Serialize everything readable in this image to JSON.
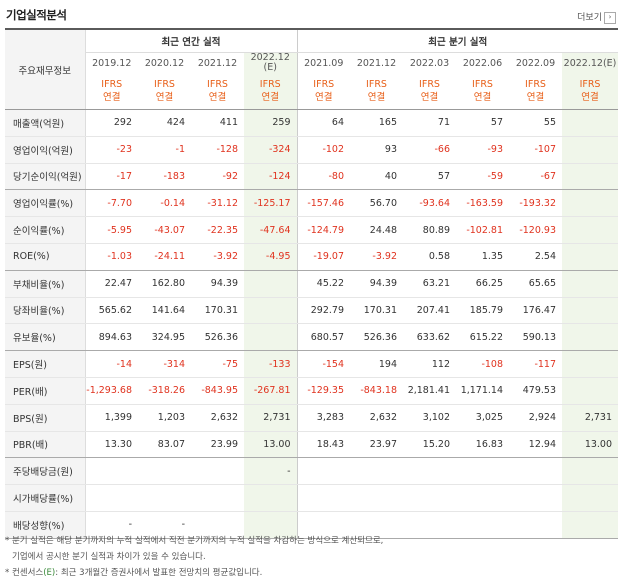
{
  "title": "기업실적분석",
  "more_label": "더보기",
  "more_arrow": "›",
  "row_header": "주요재무정보",
  "annual_group": "최근 연간 실적",
  "quarterly_group": "최근 분기 실적",
  "annual_periods": [
    "2019.12",
    "2020.12",
    "2021.12",
    "2022.12"
  ],
  "annual_est_mark": "(E)",
  "quarterly_periods": [
    "2021.09",
    "2021.12",
    "2022.03",
    "2022.06",
    "2022.09",
    "2022.12(E)"
  ],
  "ifrs_line1": "IFRS",
  "ifrs_line2": "연결",
  "rows": [
    {
      "label": "매출액(억원)",
      "values": [
        "292",
        "424",
        "411",
        "259",
        "64",
        "165",
        "71",
        "57",
        "55",
        ""
      ]
    },
    {
      "label": "영업이익(억원)",
      "values": [
        "-23",
        "-1",
        "-128",
        "-324",
        "-102",
        "93",
        "-66",
        "-93",
        "-107",
        ""
      ]
    },
    {
      "label": "당기순이익(억원)",
      "values": [
        "-17",
        "-183",
        "-92",
        "-124",
        "-80",
        "40",
        "57",
        "-59",
        "-67",
        ""
      ]
    },
    {
      "label": "영업이익률(%)",
      "values": [
        "-7.70",
        "-0.14",
        "-31.12",
        "-125.17",
        "-157.46",
        "56.70",
        "-93.64",
        "-163.59",
        "-193.32",
        ""
      ]
    },
    {
      "label": "순이익률(%)",
      "values": [
        "-5.95",
        "-43.07",
        "-22.35",
        "-47.64",
        "-124.79",
        "24.48",
        "80.89",
        "-102.81",
        "-120.93",
        ""
      ]
    },
    {
      "label": "ROE(%)",
      "values": [
        "-1.03",
        "-24.11",
        "-3.92",
        "-4.95",
        "-19.07",
        "-3.92",
        "0.58",
        "1.35",
        "2.54",
        ""
      ]
    },
    {
      "label": "부채비율(%)",
      "values": [
        "22.47",
        "162.80",
        "94.39",
        "",
        "45.22",
        "94.39",
        "63.21",
        "66.25",
        "65.65",
        ""
      ]
    },
    {
      "label": "당좌비율(%)",
      "values": [
        "565.62",
        "141.64",
        "170.31",
        "",
        "292.79",
        "170.31",
        "207.41",
        "185.79",
        "176.47",
        ""
      ]
    },
    {
      "label": "유보율(%)",
      "values": [
        "894.63",
        "324.95",
        "526.36",
        "",
        "680.57",
        "526.36",
        "633.62",
        "615.22",
        "590.13",
        ""
      ]
    },
    {
      "label": "EPS(원)",
      "values": [
        "-14",
        "-314",
        "-75",
        "-133",
        "-154",
        "194",
        "112",
        "-108",
        "-117",
        ""
      ]
    },
    {
      "label": "PER(배)",
      "values": [
        "-1,293.68",
        "-318.26",
        "-843.95",
        "-267.81",
        "-129.35",
        "-843.18",
        "2,181.41",
        "1,171.14",
        "479.53",
        ""
      ]
    },
    {
      "label": "BPS(원)",
      "values": [
        "1,399",
        "1,203",
        "2,632",
        "2,731",
        "3,283",
        "2,632",
        "3,102",
        "3,025",
        "2,924",
        "2,731"
      ]
    },
    {
      "label": "PBR(배)",
      "values": [
        "13.30",
        "83.07",
        "23.99",
        "13.00",
        "18.43",
        "23.97",
        "15.20",
        "16.83",
        "12.94",
        "13.00"
      ]
    },
    {
      "label": "주당배당금(원)",
      "values": [
        "",
        "",
        "",
        "-",
        "",
        "",
        "",
        "",
        "",
        ""
      ]
    },
    {
      "label": "시가배당률(%)",
      "values": [
        "",
        "",
        "",
        "",
        "",
        "",
        "",
        "",
        "",
        ""
      ]
    },
    {
      "label": "배당성향(%)",
      "values": [
        "-",
        "-",
        "",
        "",
        "",
        "",
        "",
        "",
        "",
        ""
      ]
    }
  ],
  "notes": {
    "line1": "* 분기 실적은 해당 분기까지의 누적 실적에서 직전 분기까지의 누적 실적을 차감하는 방식으로 계산되므로,",
    "line2": "기업에서 공시한 분기 실적과 차이가 있을 수 있습니다.",
    "line3_pre": "* 컨센서스",
    "line3_e": "(E)",
    "line3_post": ": 최근 3개월간 증권사에서 발표한 전망치의 평균값입니다."
  },
  "colors": {
    "negative": "#e0331f",
    "ifrs": "#e8601a",
    "estimate_bg": "#f0f6ea"
  }
}
